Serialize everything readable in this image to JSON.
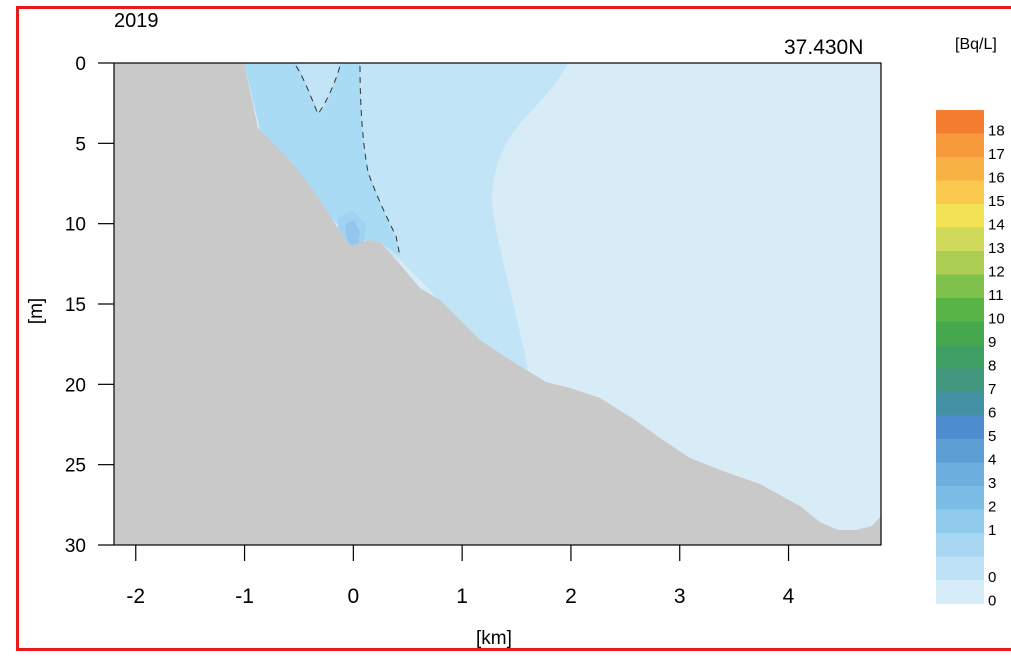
{
  "chart_data": {
    "type": "heatmap",
    "title": "2019",
    "subtitle": "37.430N",
    "xlabel": "[km]",
    "ylabel": "[m]",
    "colorbar_unit": "[Bq/L]",
    "x_ticks": [
      -2,
      -1,
      0,
      1,
      2,
      3,
      4
    ],
    "y_ticks": [
      0,
      5,
      10,
      15,
      20,
      25,
      30
    ],
    "xlim": [
      -2.2,
      4.85
    ],
    "ylim": [
      30,
      0
    ],
    "grid": false,
    "colorbar_labels": [
      "18",
      "17",
      "16",
      "15",
      "14",
      "13",
      "12",
      "11",
      "10",
      "9",
      "8",
      "7",
      "6",
      "5",
      "4",
      "3",
      "2",
      "1",
      "",
      "0",
      "0"
    ],
    "colorbar_colors": [
      "#f47d30",
      "#f79a3c",
      "#f8b244",
      "#fac94d",
      "#f2e355",
      "#cfd95a",
      "#aacd52",
      "#7fc14a",
      "#58b445",
      "#45a84e",
      "#3fa063",
      "#41977e",
      "#4291a5",
      "#4e8ecf",
      "#5b9fd5",
      "#6cafdf",
      "#7cbde7",
      "#8fcaed",
      "#a6d6f2",
      "#bfe1f6",
      "#d6ecf8"
    ],
    "regions": [
      {
        "name": "seabed",
        "color": "#c9c9c9"
      },
      {
        "name": "background",
        "color": "#d8ecf8"
      },
      {
        "name": "band-2",
        "color": "#c2e4f7"
      },
      {
        "name": "band-3",
        "color": "#a9dbf4"
      },
      {
        "name": "peak",
        "color": "#92c6ec"
      }
    ]
  }
}
